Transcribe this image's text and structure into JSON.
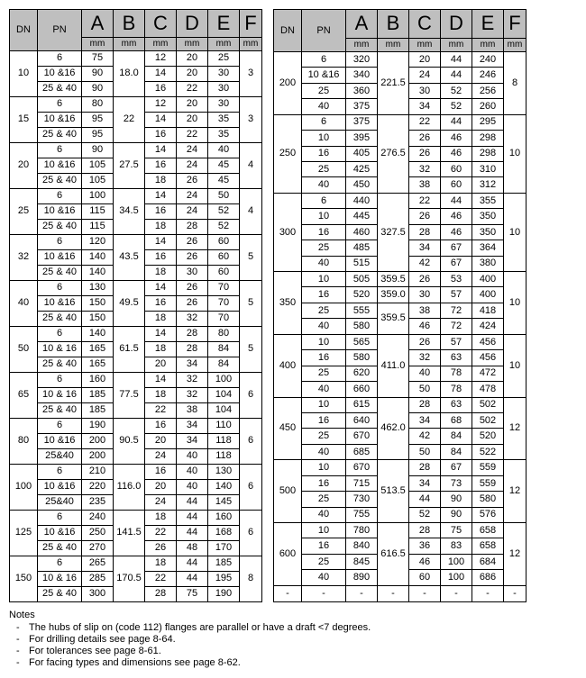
{
  "headers": {
    "dn": "DN",
    "pn": "PN",
    "letters": [
      "A",
      "B",
      "C",
      "D",
      "E",
      "F"
    ],
    "unit": "mm"
  },
  "notes": {
    "title": "Notes",
    "items": [
      "The hubs of slip on (code 112) flanges are parallel or have a draft <7 degrees.",
      "For drilling details see page 8-64.",
      "For tolerances see page 8-61.",
      "For facing types and dimensions see page 8-62."
    ]
  },
  "left_table": [
    {
      "dn": "10",
      "b": "18.0",
      "f": "3",
      "rows": [
        {
          "pn": "6",
          "a": "75",
          "c": "12",
          "d": "20",
          "e": "25"
        },
        {
          "pn": "10 &16",
          "a": "90",
          "c": "14",
          "d": "20",
          "e": "30"
        },
        {
          "pn": "25 & 40",
          "a": "90",
          "c": "16",
          "d": "22",
          "e": "30"
        }
      ]
    },
    {
      "dn": "15",
      "b": "22",
      "f": "3",
      "rows": [
        {
          "pn": "6",
          "a": "80",
          "c": "12",
          "d": "20",
          "e": "30"
        },
        {
          "pn": "10 &16",
          "a": "95",
          "c": "14",
          "d": "20",
          "e": "35"
        },
        {
          "pn": "25 & 40",
          "a": "95",
          "c": "16",
          "d": "22",
          "e": "35"
        }
      ]
    },
    {
      "dn": "20",
      "b": "27.5",
      "f": "4",
      "rows": [
        {
          "pn": "6",
          "a": "90",
          "c": "14",
          "d": "24",
          "e": "40"
        },
        {
          "pn": "10 &16",
          "a": "105",
          "c": "16",
          "d": "24",
          "e": "45"
        },
        {
          "pn": "25 & 40",
          "a": "105",
          "c": "18",
          "d": "26",
          "e": "45"
        }
      ]
    },
    {
      "dn": "25",
      "b": "34.5",
      "f": "4",
      "rows": [
        {
          "pn": "6",
          "a": "100",
          "c": "14",
          "d": "24",
          "e": "50"
        },
        {
          "pn": "10 &16",
          "a": "115",
          "c": "16",
          "d": "24",
          "e": "52"
        },
        {
          "pn": "25 & 40",
          "a": "115",
          "c": "18",
          "d": "28",
          "e": "52"
        }
      ]
    },
    {
      "dn": "32",
      "b": "43.5",
      "f": "5",
      "rows": [
        {
          "pn": "6",
          "a": "120",
          "c": "14",
          "d": "26",
          "e": "60"
        },
        {
          "pn": "10 &16",
          "a": "140",
          "c": "16",
          "d": "26",
          "e": "60"
        },
        {
          "pn": "25 & 40",
          "a": "140",
          "c": "18",
          "d": "30",
          "e": "60"
        }
      ]
    },
    {
      "dn": "40",
      "b": "49.5",
      "f": "5",
      "rows": [
        {
          "pn": "6",
          "a": "130",
          "c": "14",
          "d": "26",
          "e": "70"
        },
        {
          "pn": "10 &16",
          "a": "150",
          "c": "16",
          "d": "26",
          "e": "70"
        },
        {
          "pn": "25 & 40",
          "a": "150",
          "c": "18",
          "d": "32",
          "e": "70"
        }
      ]
    },
    {
      "dn": "50",
      "b": "61.5",
      "f": "5",
      "rows": [
        {
          "pn": "6",
          "a": "140",
          "c": "14",
          "d": "28",
          "e": "80"
        },
        {
          "pn": "10 & 16",
          "a": "165",
          "c": "18",
          "d": "28",
          "e": "84"
        },
        {
          "pn": "25 & 40",
          "a": "165",
          "c": "20",
          "d": "34",
          "e": "84"
        }
      ]
    },
    {
      "dn": "65",
      "b": "77.5",
      "f": "6",
      "rows": [
        {
          "pn": "6",
          "a": "160",
          "c": "14",
          "d": "32",
          "e": "100"
        },
        {
          "pn": "10 & 16",
          "a": "185",
          "c": "18",
          "d": "32",
          "e": "104"
        },
        {
          "pn": "25 & 40",
          "a": "185",
          "c": "22",
          "d": "38",
          "e": "104"
        }
      ]
    },
    {
      "dn": "80",
      "b": "90.5",
      "f": "6",
      "rows": [
        {
          "pn": "6",
          "a": "190",
          "c": "16",
          "d": "34",
          "e": "110"
        },
        {
          "pn": "10 &16",
          "a": "200",
          "c": "20",
          "d": "34",
          "e": "118"
        },
        {
          "pn": "25&40",
          "a": "200",
          "c": "24",
          "d": "40",
          "e": "118"
        }
      ]
    },
    {
      "dn": "100",
      "b": "116.0",
      "f": "6",
      "rows": [
        {
          "pn": "6",
          "a": "210",
          "c": "16",
          "d": "40",
          "e": "130"
        },
        {
          "pn": "10 &16",
          "a": "220",
          "c": "20",
          "d": "40",
          "e": "140"
        },
        {
          "pn": "25&40",
          "a": "235",
          "c": "24",
          "d": "44",
          "e": "145"
        }
      ]
    },
    {
      "dn": "125",
      "b": "141.5",
      "f": "6",
      "rows": [
        {
          "pn": "6",
          "a": "240",
          "c": "18",
          "d": "44",
          "e": "160"
        },
        {
          "pn": "10 &16",
          "a": "250",
          "c": "22",
          "d": "44",
          "e": "168"
        },
        {
          "pn": "25 & 40",
          "a": "270",
          "c": "26",
          "d": "48",
          "e": "170"
        }
      ]
    },
    {
      "dn": "150",
      "b": "170.5",
      "f": "8",
      "rows": [
        {
          "pn": "6",
          "a": "265",
          "c": "18",
          "d": "44",
          "e": "185"
        },
        {
          "pn": "10 & 16",
          "a": "285",
          "c": "22",
          "d": "44",
          "e": "195"
        },
        {
          "pn": "25 & 40",
          "a": "300",
          "c": "28",
          "d": "75",
          "e": "190"
        }
      ]
    }
  ],
  "right_table": [
    {
      "dn": "200",
      "b": "221.5",
      "f": "8",
      "rows": [
        {
          "pn": "6",
          "a": "320",
          "c": "20",
          "d": "44",
          "e": "240"
        },
        {
          "pn": "10 &16",
          "a": "340",
          "c": "24",
          "d": "44",
          "e": "246"
        },
        {
          "pn": "25",
          "a": "360",
          "c": "30",
          "d": "52",
          "e": "256"
        },
        {
          "pn": "40",
          "a": "375",
          "c": "34",
          "d": "52",
          "e": "260"
        }
      ]
    },
    {
      "dn": "250",
      "b": "276.5",
      "f": "10",
      "rows": [
        {
          "pn": "6",
          "a": "375",
          "c": "22",
          "d": "44",
          "e": "295"
        },
        {
          "pn": "10",
          "a": "395",
          "c": "26",
          "d": "46",
          "e": "298"
        },
        {
          "pn": "16",
          "a": "405",
          "c": "26",
          "d": "46",
          "e": "298"
        },
        {
          "pn": "25",
          "a": "425",
          "c": "32",
          "d": "60",
          "e": "310"
        },
        {
          "pn": "40",
          "a": "450",
          "c": "38",
          "d": "60",
          "e": "312"
        }
      ]
    },
    {
      "dn": "300",
      "b": "327.5",
      "f": "10",
      "rows": [
        {
          "pn": "6",
          "a": "440",
          "c": "22",
          "d": "44",
          "e": "355"
        },
        {
          "pn": "10",
          "a": "445",
          "c": "26",
          "d": "46",
          "e": "350"
        },
        {
          "pn": "16",
          "a": "460",
          "c": "28",
          "d": "46",
          "e": "350"
        },
        {
          "pn": "25",
          "a": "485",
          "c": "34",
          "d": "67",
          "e": "364"
        },
        {
          "pn": "40",
          "a": "515",
          "c": "42",
          "d": "67",
          "e": "380"
        }
      ]
    },
    {
      "dn": "350",
      "b": null,
      "f": "10",
      "b_rows": [
        "359.5",
        "359.0",
        "359.5",
        ""
      ],
      "rows": [
        {
          "pn": "10",
          "a": "505",
          "c": "26",
          "d": "53",
          "e": "400"
        },
        {
          "pn": "16",
          "a": "520",
          "c": "30",
          "d": "57",
          "e": "400"
        },
        {
          "pn": "25",
          "a": "555",
          "c": "38",
          "d": "72",
          "e": "418"
        },
        {
          "pn": "40",
          "a": "580",
          "c": "46",
          "d": "72",
          "e": "424"
        }
      ]
    },
    {
      "dn": "400",
      "b": "411.0",
      "f": "10",
      "rows": [
        {
          "pn": "10",
          "a": "565",
          "c": "26",
          "d": "57",
          "e": "456"
        },
        {
          "pn": "16",
          "a": "580",
          "c": "32",
          "d": "63",
          "e": "456"
        },
        {
          "pn": "25",
          "a": "620",
          "c": "40",
          "d": "78",
          "e": "472"
        },
        {
          "pn": "40",
          "a": "660",
          "c": "50",
          "d": "78",
          "e": "478"
        }
      ]
    },
    {
      "dn": "450",
      "b": "462.0",
      "f": "12",
      "rows": [
        {
          "pn": "10",
          "a": "615",
          "c": "28",
          "d": "63",
          "e": "502"
        },
        {
          "pn": "16",
          "a": "640",
          "c": "34",
          "d": "68",
          "e": "502"
        },
        {
          "pn": "25",
          "a": "670",
          "c": "42",
          "d": "84",
          "e": "520"
        },
        {
          "pn": "40",
          "a": "685",
          "c": "50",
          "d": "84",
          "e": "522"
        }
      ]
    },
    {
      "dn": "500",
      "b": "513.5",
      "f": "12",
      "rows": [
        {
          "pn": "10",
          "a": "670",
          "c": "28",
          "d": "67",
          "e": "559"
        },
        {
          "pn": "16",
          "a": "715",
          "c": "34",
          "d": "73",
          "e": "559"
        },
        {
          "pn": "25",
          "a": "730",
          "c": "44",
          "d": "90",
          "e": "580"
        },
        {
          "pn": "40",
          "a": "755",
          "c": "52",
          "d": "90",
          "e": "576"
        }
      ]
    },
    {
      "dn": "600",
      "b": "616.5",
      "f": "12",
      "rows": [
        {
          "pn": "10",
          "a": "780",
          "c": "28",
          "d": "75",
          "e": "658"
        },
        {
          "pn": "16",
          "a": "840",
          "c": "36",
          "d": "83",
          "e": "658"
        },
        {
          "pn": "25",
          "a": "845",
          "c": "46",
          "d": "100",
          "e": "684"
        },
        {
          "pn": "40",
          "a": "890",
          "c": "60",
          "d": "100",
          "e": "686"
        }
      ]
    },
    {
      "dn": "-",
      "b": "-",
      "f": "-",
      "single": true,
      "rows": [
        {
          "pn": "-",
          "a": "-",
          "c": "-",
          "d": "-",
          "e": "-"
        }
      ]
    }
  ],
  "style": {
    "header_bg": "#bfbfbf",
    "border_color": "#000000",
    "font_size_body": 11,
    "font_size_letter": 22,
    "font_family": "Arial"
  }
}
